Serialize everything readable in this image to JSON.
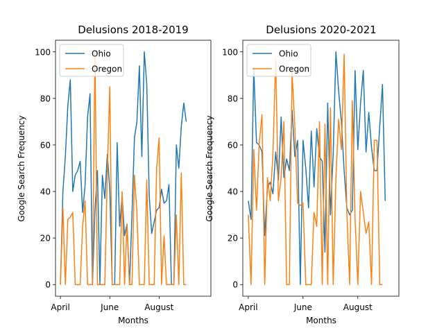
{
  "figure": {
    "background": "#ffffff"
  },
  "chart_data": [
    {
      "type": "line",
      "title": "Delusions 2018-2019",
      "xlabel": "Months",
      "ylabel": "Google Search Frequency",
      "xticks": [
        {
          "label": "April",
          "week": 0
        },
        {
          "label": "June",
          "week": 20
        },
        {
          "label": "August",
          "week": 40
        }
      ],
      "yticks": [
        0,
        20,
        40,
        60,
        80,
        100
      ],
      "xlim": [
        -2,
        61
      ],
      "ylim": [
        -5,
        105
      ],
      "legend_position": "upper-left",
      "series": [
        {
          "name": "Ohio",
          "color": "#1f77b4",
          "values": [
            0,
            40,
            55,
            77,
            88,
            40,
            47,
            49,
            53,
            31,
            43,
            72,
            82,
            0,
            32,
            49,
            0,
            47,
            37,
            56,
            41,
            0,
            0,
            61,
            25,
            38,
            21,
            26,
            0,
            30,
            63,
            70,
            94,
            55,
            100,
            86,
            38,
            22,
            27,
            32,
            33,
            41,
            35,
            36,
            43,
            0,
            0,
            60,
            50,
            68,
            78,
            70
          ]
        },
        {
          "name": "Oregon",
          "color": "#ff7f0e",
          "values": [
            0,
            33,
            0,
            28,
            29,
            31,
            0,
            0,
            0,
            25,
            36,
            0,
            0,
            0,
            100,
            0,
            0,
            0,
            0,
            48,
            85,
            0,
            0,
            0,
            0,
            40,
            0,
            26,
            0,
            0,
            47,
            31,
            0,
            0,
            0,
            45,
            0,
            0,
            0,
            50,
            63,
            0,
            21,
            0,
            0,
            0,
            0,
            30,
            0,
            48,
            0,
            0
          ]
        }
      ]
    },
    {
      "type": "line",
      "title": "Delusions 2020-2021",
      "xlabel": "Months",
      "ylabel": "Google Search Frequency",
      "xticks": [
        {
          "label": "April",
          "week": 0
        },
        {
          "label": "June",
          "week": 20
        },
        {
          "label": "August",
          "week": 40
        }
      ],
      "yticks": [
        0,
        20,
        40,
        60,
        80,
        100
      ],
      "xlim": [
        -2,
        55
      ],
      "ylim": [
        -5,
        105
      ],
      "legend_position": "upper-left",
      "series": [
        {
          "name": "Ohio",
          "color": "#1f77b4",
          "values": [
            36,
            28,
            93,
            61,
            60,
            57,
            21,
            42,
            44,
            39,
            57,
            45,
            72,
            46,
            54,
            49,
            75,
            55,
            62,
            0,
            62,
            50,
            33,
            66,
            42,
            67,
            55,
            53,
            14,
            78,
            30,
            56,
            100,
            83,
            70,
            49,
            33,
            30,
            32,
            92,
            58,
            78,
            92,
            57,
            74,
            59,
            49,
            49,
            68,
            86,
            36
          ]
        },
        {
          "name": "Oregon",
          "color": "#ff7f0e",
          "values": [
            30,
            0,
            58,
            32,
            61,
            73,
            0,
            46,
            36,
            56,
            97,
            36,
            46,
            70,
            0,
            0,
            91,
            68,
            35,
            34,
            35,
            0,
            0,
            0,
            31,
            25,
            70,
            0,
            69,
            0,
            76,
            0,
            46,
            71,
            58,
            99,
            31,
            0,
            79,
            28,
            0,
            40,
            31,
            22,
            27,
            0,
            62,
            62,
            0,
            0
          ]
        }
      ]
    }
  ]
}
